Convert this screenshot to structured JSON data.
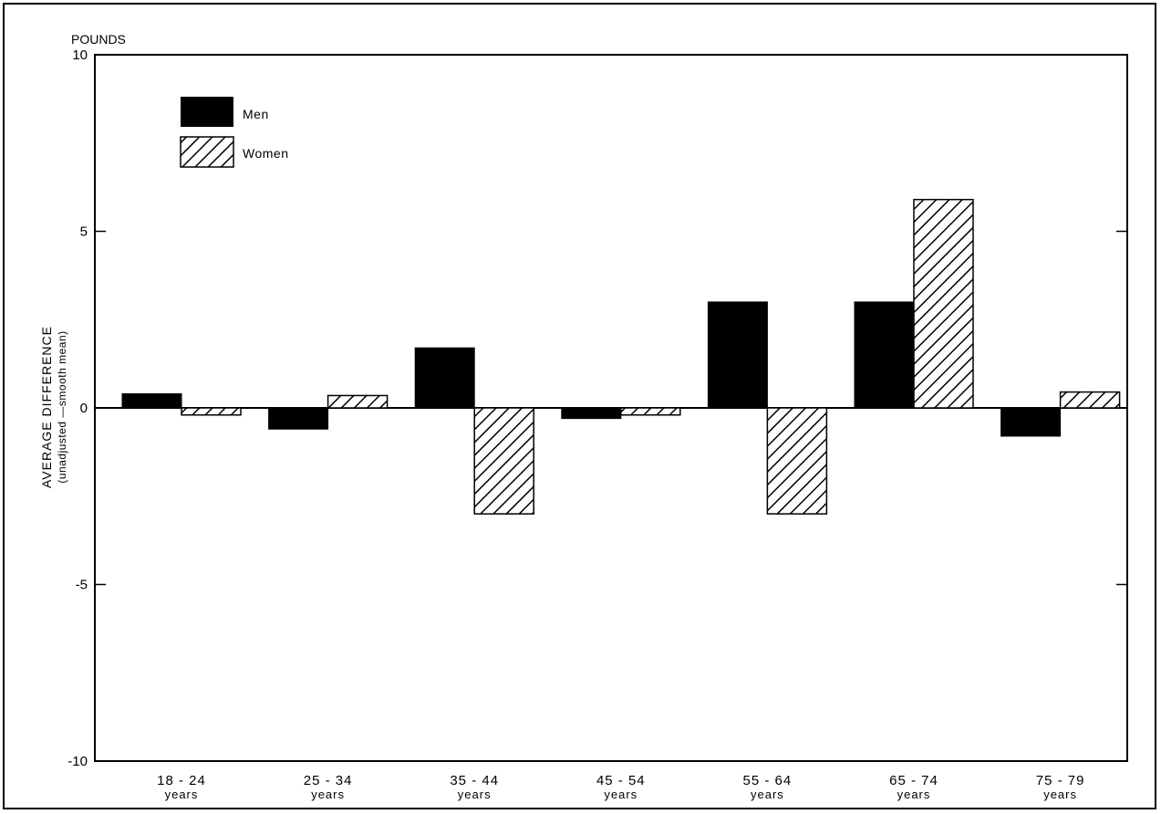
{
  "chart_data": {
    "type": "bar",
    "unit_label": "POUNDS",
    "ylabel": "AVERAGE DIFFERENCE",
    "ylabel_sub": "(unadjusted —smooth mean)",
    "ylim": [
      -10,
      10
    ],
    "yticks": [
      "10",
      "5",
      "0",
      "-5",
      "-10"
    ],
    "ytick_values": [
      10,
      5,
      0,
      -5,
      -10
    ],
    "categories": [
      "18 - 24",
      "25 - 34",
      "35 - 44",
      "45 - 54",
      "55 - 64",
      "65 - 74",
      "75 - 79"
    ],
    "category_sub": "years",
    "series": [
      {
        "name": "Men",
        "style": "solid",
        "color": "#000000",
        "values": [
          0.4,
          -0.6,
          1.7,
          -0.3,
          3.0,
          3.0,
          -0.8
        ]
      },
      {
        "name": "Women",
        "style": "hatched",
        "color": "#000000",
        "values": [
          -0.2,
          0.35,
          -3.0,
          -0.2,
          -3.0,
          5.9,
          0.45
        ]
      }
    ],
    "legend_position": "top-left",
    "grid": false
  }
}
